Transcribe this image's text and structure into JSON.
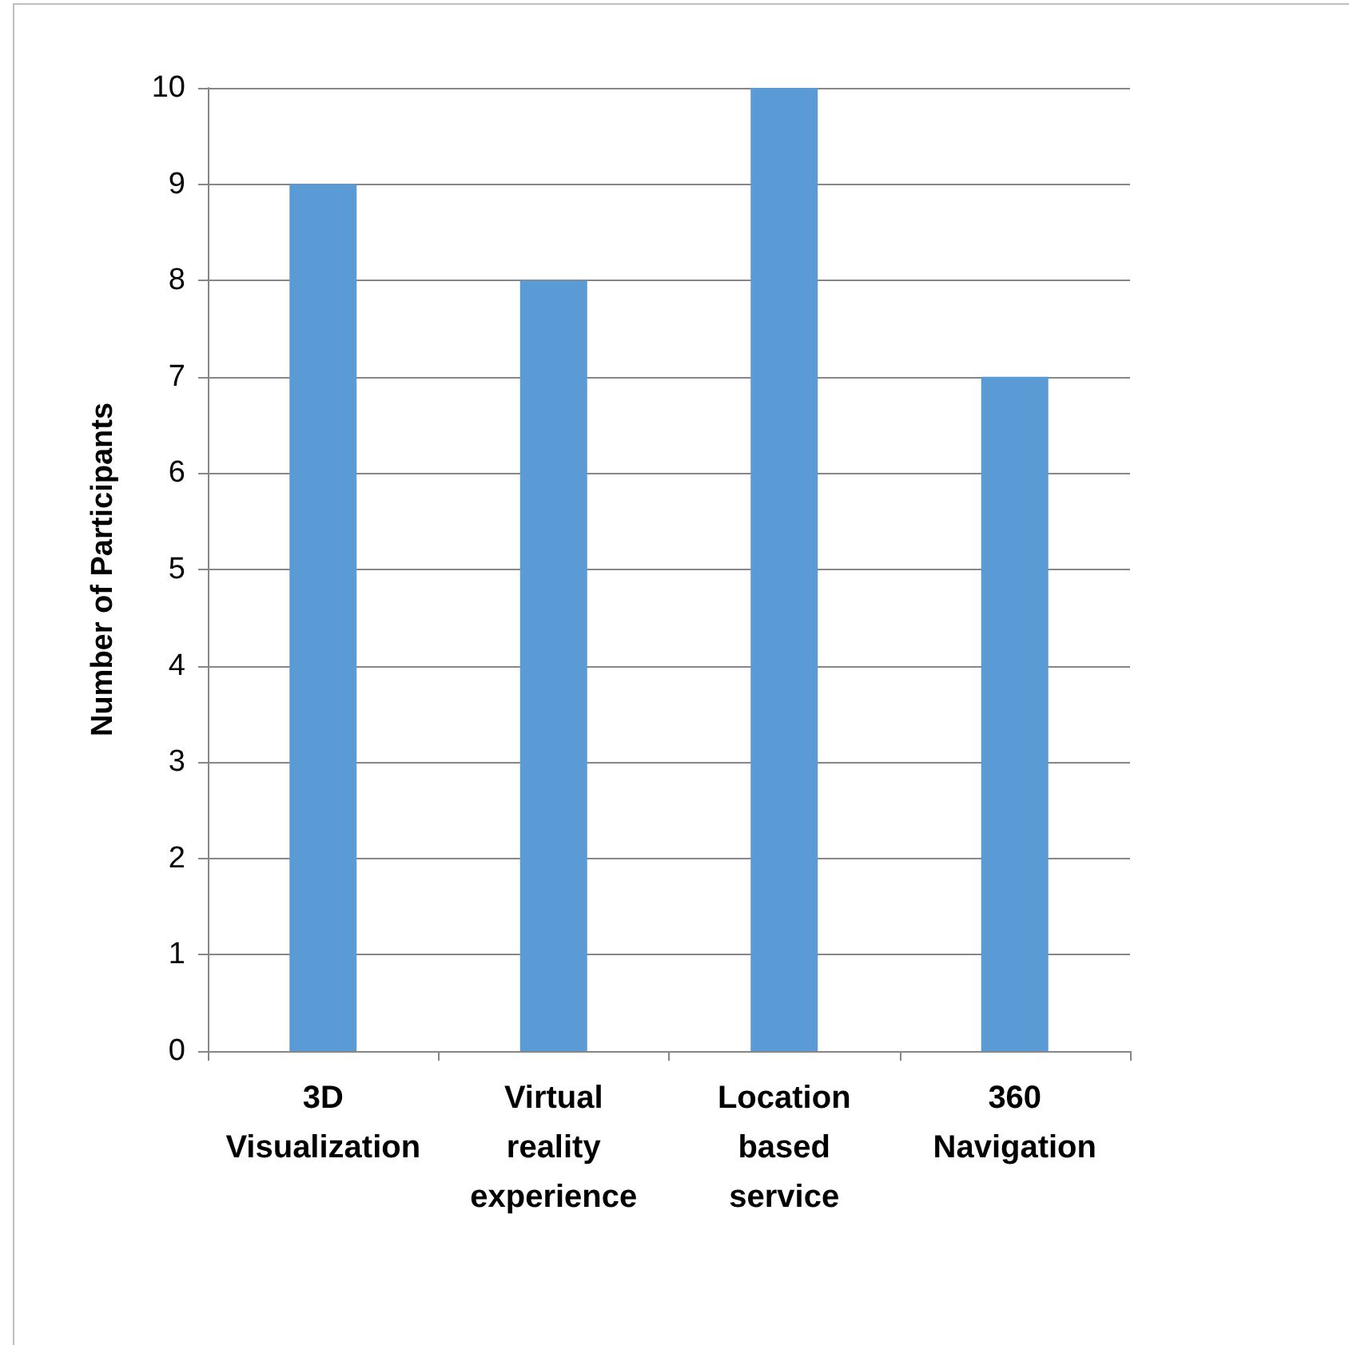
{
  "chart_data": {
    "type": "bar",
    "ylabel": "Number of Participants",
    "categories": [
      "3D Visualization",
      "Virtual reality experience",
      "Location based service",
      "360 Navigation"
    ],
    "values": [
      9,
      8,
      10,
      7
    ],
    "color": "#5b9bd5",
    "ylim": [
      0,
      10
    ],
    "yticks": [
      0,
      1,
      2,
      3,
      4,
      5,
      6,
      7,
      8,
      9,
      10
    ],
    "grid": "y"
  }
}
